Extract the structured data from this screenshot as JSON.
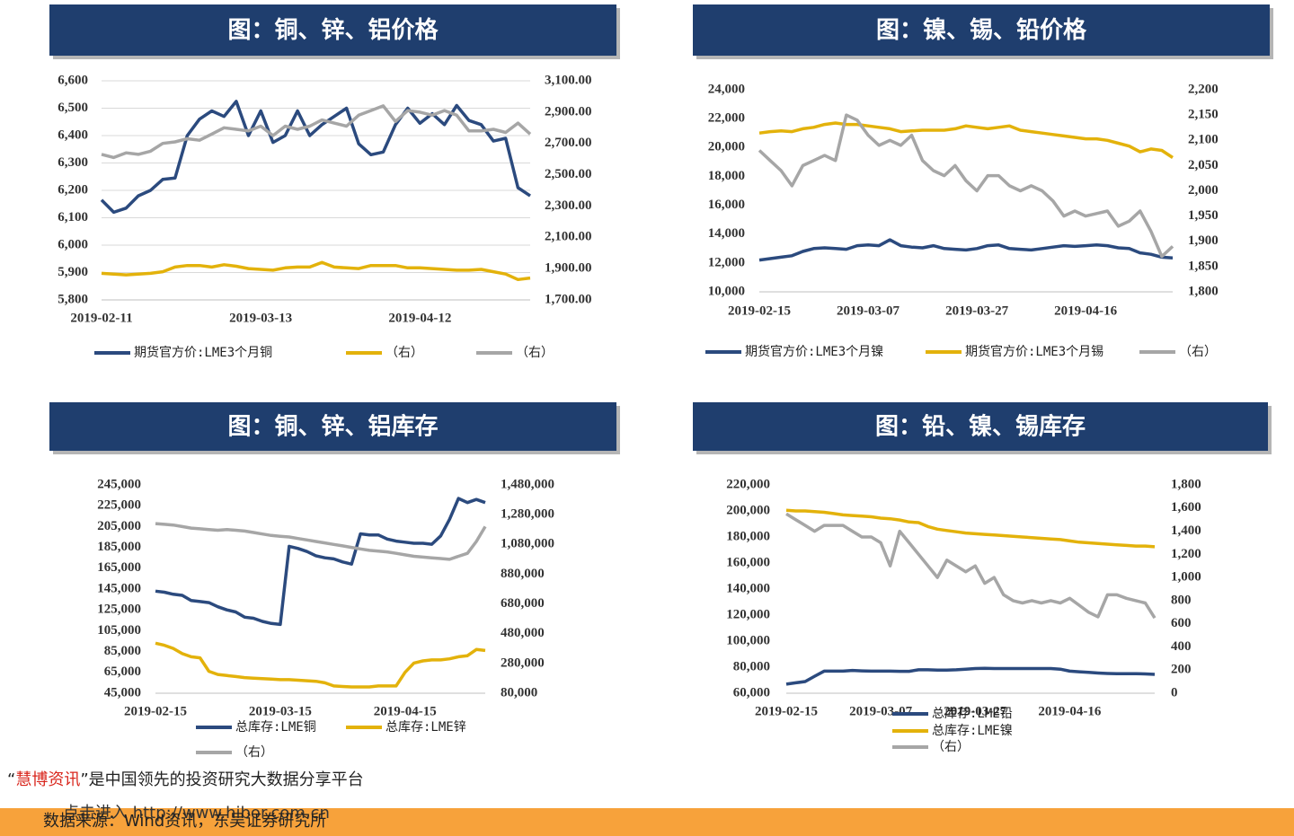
{
  "chart_data": [
    {
      "type": "line",
      "title": "图：铜、锌、铝价格",
      "categories": [
        "2019-02-11",
        null,
        null,
        null,
        null,
        null,
        null,
        null,
        null,
        null,
        null,
        null,
        null,
        "2019-03-13",
        null,
        null,
        null,
        null,
        null,
        null,
        null,
        null,
        null,
        null,
        null,
        null,
        "2019-04-12",
        null,
        null,
        null,
        null,
        null,
        null,
        null,
        null,
        null
      ],
      "series": [
        {
          "name": "期货官方价:LME3个月铜",
          "color": "#2b4a7e",
          "values": [
            6165,
            6120,
            6135,
            6180,
            6200,
            6240,
            6245,
            6400,
            6460,
            6490,
            6470,
            6525,
            6400,
            6490,
            6375,
            6400,
            6490,
            6400,
            6440,
            6470,
            6500,
            6370,
            6330,
            6340,
            6440,
            6500,
            6445,
            6480,
            6440,
            6510,
            6455,
            6440,
            6380,
            6390,
            6210,
            6180
          ]
        },
        {
          "name": "（右）",
          "color": "#e3b20b",
          "axis": "y2",
          "values": [
            1870,
            1865,
            1860,
            1865,
            1870,
            1880,
            1910,
            1920,
            1920,
            1910,
            1925,
            1915,
            1900,
            1895,
            1890,
            1905,
            1910,
            1910,
            1940,
            1910,
            1905,
            1900,
            1920,
            1920,
            1920,
            1905,
            1905,
            1900,
            1895,
            1890,
            1890,
            1895,
            1880,
            1865,
            1830,
            1840
          ]
        },
        {
          "name": "（右）",
          "color": "#a6a6a6",
          "axis": "y2",
          "values": [
            2630,
            2610,
            2640,
            2630,
            2650,
            2700,
            2710,
            2730,
            2720,
            2760,
            2800,
            2790,
            2780,
            2810,
            2750,
            2810,
            2790,
            2810,
            2850,
            2830,
            2810,
            2880,
            2910,
            2940,
            2840,
            2910,
            2900,
            2880,
            2910,
            2880,
            2780,
            2780,
            2790,
            2770,
            2830,
            2760
          ]
        }
      ],
      "ylim": [
        5800,
        6600
      ],
      "yticks": [
        {
          "value": 5800,
          "label": "5,800"
        },
        {
          "value": 5900,
          "label": "5,900"
        },
        {
          "value": 6000,
          "label": "6,000"
        },
        {
          "value": 6100,
          "label": "6,100"
        },
        {
          "value": 6200,
          "label": "6,200"
        },
        {
          "value": 6300,
          "label": "6,300"
        },
        {
          "value": 6400,
          "label": "6,400"
        },
        {
          "value": 6500,
          "label": "6,500"
        },
        {
          "value": 6600,
          "label": "6,600"
        }
      ],
      "y2lim": [
        1700,
        3100
      ],
      "y2ticks": [
        {
          "value": 1700,
          "label": "1,700.00"
        },
        {
          "value": 1900,
          "label": "1,900.00"
        },
        {
          "value": 2100,
          "label": "2,100.00"
        },
        {
          "value": 2300,
          "label": "2,300.00"
        },
        {
          "value": 2500,
          "label": "2,500.00"
        },
        {
          "value": 2700,
          "label": "2,700.00"
        },
        {
          "value": 2900,
          "label": "2,900.00"
        },
        {
          "value": 3100,
          "label": "3,100.00"
        }
      ],
      "grid": true
    },
    {
      "type": "line",
      "title": "图：镍、锡、铅价格",
      "categories": [
        "2019-02-15",
        null,
        null,
        null,
        null,
        null,
        null,
        null,
        null,
        null,
        "2019-03-07",
        null,
        null,
        null,
        null,
        null,
        null,
        null,
        null,
        null,
        "2019-03-27",
        null,
        null,
        null,
        null,
        null,
        null,
        null,
        null,
        null,
        "2019-04-16",
        null,
        null,
        null,
        null,
        null,
        null,
        null,
        null
      ],
      "series": [
        {
          "name": "期货官方价:LME3个月镍",
          "color": "#2b4a7e",
          "values": [
            12200,
            12300,
            12400,
            12500,
            12800,
            13000,
            13050,
            13000,
            12950,
            13200,
            13250,
            13200,
            13600,
            13200,
            13100,
            13050,
            13200,
            13000,
            12950,
            12900,
            13000,
            13200,
            13250,
            13000,
            12950,
            12900,
            13000,
            13100,
            13200,
            13150,
            13200,
            13250,
            13200,
            13050,
            13000,
            12700,
            12600,
            12400,
            12350
          ]
        },
        {
          "name": "期货官方价:LME3个月锡",
          "color": "#e3b20b",
          "values": [
            21000,
            21100,
            21150,
            21100,
            21300,
            21400,
            21600,
            21700,
            21600,
            21600,
            21500,
            21400,
            21300,
            21100,
            21150,
            21200,
            21200,
            21200,
            21300,
            21500,
            21400,
            21300,
            21400,
            21500,
            21200,
            21100,
            21000,
            20900,
            20800,
            20700,
            20600,
            20600,
            20500,
            20300,
            20100,
            19700,
            19900,
            19800,
            19300
          ]
        },
        {
          "name": "（右）",
          "color": "#a6a6a6",
          "axis": "y2",
          "values": [
            2080,
            2060,
            2040,
            2010,
            2050,
            2060,
            2070,
            2060,
            2150,
            2140,
            2110,
            2090,
            2100,
            2090,
            2110,
            2060,
            2040,
            2030,
            2050,
            2020,
            2000,
            2030,
            2030,
            2010,
            2000,
            2010,
            2000,
            1980,
            1950,
            1960,
            1950,
            1955,
            1960,
            1930,
            1940,
            1960,
            1920,
            1870,
            1890
          ]
        }
      ],
      "ylim": [
        10000,
        24000
      ],
      "yticks": [
        {
          "value": 10000,
          "label": "10,000"
        },
        {
          "value": 12000,
          "label": "12,000"
        },
        {
          "value": 14000,
          "label": "14,000"
        },
        {
          "value": 16000,
          "label": "16,000"
        },
        {
          "value": 18000,
          "label": "18,000"
        },
        {
          "value": 20000,
          "label": "20,000"
        },
        {
          "value": 22000,
          "label": "22,000"
        },
        {
          "value": 24000,
          "label": "24,000"
        }
      ],
      "y2lim": [
        1800,
        2200
      ],
      "y2ticks": [
        {
          "value": 1800,
          "label": "1,800"
        },
        {
          "value": 1850,
          "label": "1,850"
        },
        {
          "value": 1900,
          "label": "1,900"
        },
        {
          "value": 1950,
          "label": "1,950"
        },
        {
          "value": 2000,
          "label": "2,000"
        },
        {
          "value": 2050,
          "label": "2,050"
        },
        {
          "value": 2100,
          "label": "2,100"
        },
        {
          "value": 2150,
          "label": "2,150"
        },
        {
          "value": 2200,
          "label": "2,200"
        }
      ],
      "grid": false
    },
    {
      "type": "line",
      "title": "图：铜、锌、铝库存",
      "categories": [
        "2019-02-15",
        null,
        null,
        null,
        null,
        null,
        null,
        null,
        null,
        null,
        null,
        null,
        null,
        null,
        "2019-03-15",
        null,
        null,
        null,
        null,
        null,
        null,
        null,
        null,
        null,
        null,
        null,
        null,
        null,
        "2019-04-15",
        null,
        null,
        null,
        null,
        null,
        null,
        null,
        null,
        null
      ],
      "series": [
        {
          "name": "总库存:LME铜",
          "color": "#2b4a7e",
          "values": [
            143000,
            142000,
            140000,
            139000,
            134000,
            133000,
            132000,
            128000,
            125000,
            123000,
            118000,
            117000,
            114000,
            112000,
            111000,
            186000,
            184000,
            181000,
            177000,
            175000,
            174000,
            171000,
            169000,
            198000,
            197000,
            197000,
            193000,
            191000,
            190000,
            189000,
            189000,
            188000,
            196000,
            212000,
            232000,
            228000,
            231000,
            228000
          ]
        },
        {
          "name": "总库存:LME锌",
          "color": "#e3b20b",
          "values": [
            93000,
            91000,
            88000,
            83000,
            80000,
            79000,
            66000,
            63000,
            62000,
            61000,
            60000,
            59500,
            59000,
            58500,
            58000,
            58000,
            57500,
            57000,
            56500,
            55000,
            52000,
            51500,
            51000,
            51000,
            51000,
            52000,
            52000,
            52000,
            65000,
            74000,
            76000,
            77000,
            77000,
            78000,
            80000,
            81000,
            87000,
            86000
          ]
        },
        {
          "name": "（右）",
          "color": "#a6a6a6",
          "axis": "y2",
          "values": [
            1220000,
            1215000,
            1210000,
            1200000,
            1190000,
            1185000,
            1180000,
            1175000,
            1180000,
            1175000,
            1170000,
            1160000,
            1150000,
            1140000,
            1135000,
            1130000,
            1120000,
            1110000,
            1100000,
            1090000,
            1080000,
            1070000,
            1060000,
            1050000,
            1040000,
            1035000,
            1030000,
            1020000,
            1010000,
            1000000,
            995000,
            990000,
            985000,
            980000,
            1000000,
            1020000,
            1100000,
            1200000
          ]
        }
      ],
      "ylim": [
        45000,
        245000
      ],
      "yticks": [
        {
          "value": 45000,
          "label": "45,000"
        },
        {
          "value": 65000,
          "label": "65,000"
        },
        {
          "value": 85000,
          "label": "85,000"
        },
        {
          "value": 105000,
          "label": "105,000"
        },
        {
          "value": 125000,
          "label": "125,000"
        },
        {
          "value": 145000,
          "label": "145,000"
        },
        {
          "value": 165000,
          "label": "165,000"
        },
        {
          "value": 185000,
          "label": "185,000"
        },
        {
          "value": 205000,
          "label": "205,000"
        },
        {
          "value": 225000,
          "label": "225,000"
        },
        {
          "value": 245000,
          "label": "245,000"
        }
      ],
      "y2lim": [
        80000,
        1480000
      ],
      "y2ticks": [
        {
          "value": 80000,
          "label": "80,000"
        },
        {
          "value": 280000,
          "label": "280,000"
        },
        {
          "value": 480000,
          "label": "480,000"
        },
        {
          "value": 680000,
          "label": "680,000"
        },
        {
          "value": 880000,
          "label": "880,000"
        },
        {
          "value": 1080000,
          "label": "1,080,000"
        },
        {
          "value": 1280000,
          "label": "1,280,000"
        },
        {
          "value": 1480000,
          "label": "1,480,000"
        }
      ],
      "grid": false
    },
    {
      "type": "line",
      "title": "图：铅、镍、锡库存",
      "categories": [
        "2019-02-15",
        null,
        null,
        null,
        null,
        null,
        null,
        null,
        null,
        null,
        "2019-03-07",
        null,
        null,
        null,
        null,
        null,
        null,
        null,
        null,
        null,
        "2019-03-27",
        null,
        null,
        null,
        null,
        null,
        null,
        null,
        null,
        null,
        "2019-04-16",
        null,
        null,
        null,
        null,
        null,
        null,
        null,
        null,
        null
      ],
      "series": [
        {
          "name": "总库存:LME铅",
          "color": "#2b4a7e",
          "values": [
            67000,
            68000,
            69000,
            73000,
            77000,
            77000,
            77000,
            77500,
            77200,
            77000,
            77000,
            77000,
            76800,
            76800,
            78000,
            78000,
            77800,
            77800,
            78000,
            78500,
            79000,
            79200,
            79000,
            79000,
            79000,
            79000,
            79000,
            79000,
            79000,
            78500,
            77000,
            76500,
            76000,
            75500,
            75200,
            75000,
            75000,
            75000,
            74800,
            74500
          ]
        },
        {
          "name": "总库存:LME镍",
          "color": "#e3b20b",
          "values": [
            200500,
            200000,
            200000,
            199500,
            199000,
            198000,
            197000,
            196500,
            196000,
            195500,
            194500,
            194000,
            193000,
            191500,
            191000,
            188000,
            186000,
            185000,
            184000,
            183000,
            182500,
            182000,
            181500,
            181000,
            180500,
            180000,
            179500,
            179000,
            178500,
            178000,
            177000,
            176000,
            175500,
            175000,
            174500,
            174000,
            173500,
            173000,
            173000,
            172500
          ]
        },
        {
          "name": "（右）",
          "color": "#a6a6a6",
          "axis": "y2",
          "values": [
            1550,
            1500,
            1450,
            1400,
            1450,
            1450,
            1450,
            1400,
            1350,
            1350,
            1300,
            1100,
            1400,
            1300,
            1200,
            1100,
            1000,
            1150,
            1100,
            1050,
            1100,
            950,
            1000,
            850,
            800,
            780,
            800,
            780,
            800,
            780,
            820,
            760,
            700,
            660,
            850,
            850,
            820,
            800,
            780,
            650
          ]
        }
      ],
      "ylim": [
        60000,
        220000
      ],
      "yticks": [
        {
          "value": 60000,
          "label": "60,000"
        },
        {
          "value": 80000,
          "label": "80,000"
        },
        {
          "value": 100000,
          "label": "100,000"
        },
        {
          "value": 120000,
          "label": "120,000"
        },
        {
          "value": 140000,
          "label": "140,000"
        },
        {
          "value": 160000,
          "label": "160,000"
        },
        {
          "value": 180000,
          "label": "180,000"
        },
        {
          "value": 200000,
          "label": "200,000"
        },
        {
          "value": 220000,
          "label": "220,000"
        }
      ],
      "y2lim": [
        0,
        1800
      ],
      "y2ticks": [
        0,
        200,
        400,
        600,
        800,
        {
          "value": 1000,
          "label": "1,000"
        },
        {
          "value": 1200,
          "label": "1,200"
        },
        {
          "value": 1400,
          "label": "1,400"
        },
        {
          "value": 1600,
          "label": "1,600"
        },
        {
          "value": 1800,
          "label": "1,800"
        }
      ],
      "grid": false
    }
  ],
  "footer": {
    "quote_open": "“",
    "brand": "慧博资讯",
    "quote_close": "”",
    "tagline": "是中国领先的投资研究大数据分享平台",
    "link": "点击进入 http://www.hibor.com.cn",
    "source": "数据来源：Wind资讯，东吴证券研究所"
  }
}
